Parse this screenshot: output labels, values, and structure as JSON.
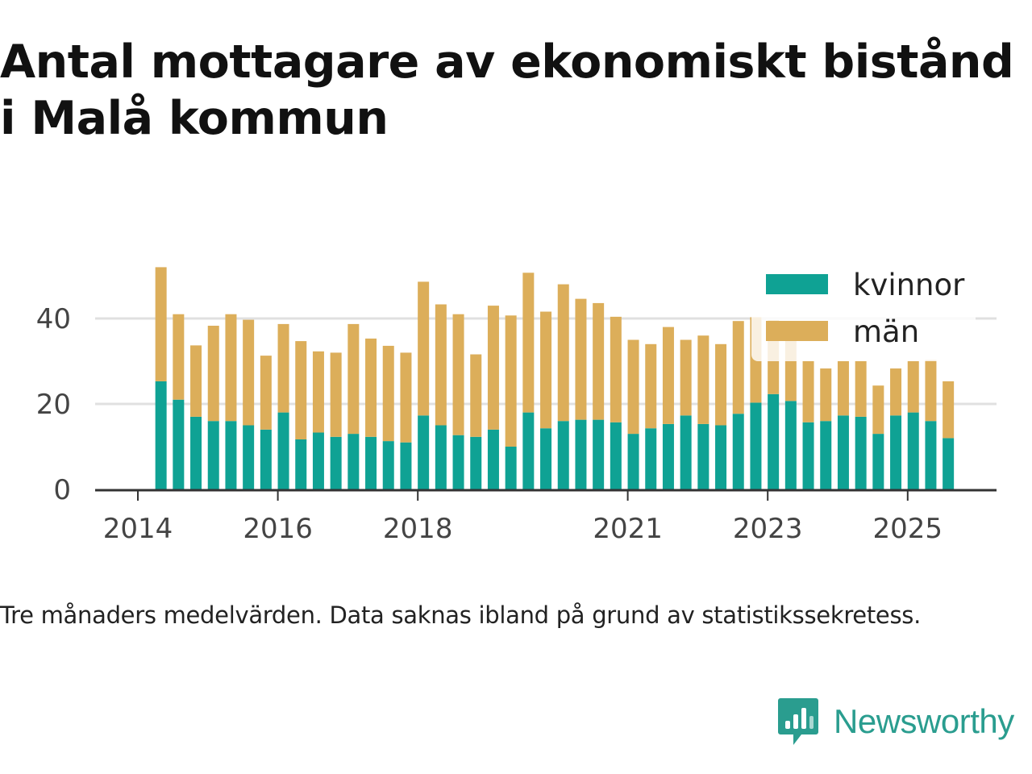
{
  "chart_data": {
    "type": "bar",
    "stacked": true,
    "title": "Antal mottagare av ekonomiskt bistånd i Malå kommun",
    "xlabel": "",
    "ylabel": "",
    "ylim": [
      0,
      55
    ],
    "yticks": [
      0,
      20,
      40
    ],
    "xtick_labels": [
      "2014",
      "2016",
      "2018",
      "2021",
      "2023",
      "2025"
    ],
    "xtick_years": [
      2014,
      2016,
      2018,
      2021,
      2023,
      2025
    ],
    "x_start": 2014.33,
    "x_step": 0.25,
    "legend_position": "top-right",
    "series": [
      {
        "name": "kvinnor",
        "color": "#0fa294",
        "values": [
          25.3,
          21,
          17,
          16,
          16,
          15,
          14,
          18,
          11.7,
          13.3,
          12.3,
          13,
          12.3,
          11.3,
          11,
          17.3,
          15,
          12.7,
          12.3,
          14,
          10,
          18,
          14.3,
          16,
          16.3,
          16.3,
          15.7,
          13,
          14.3,
          15.3,
          17.3,
          15.3,
          15,
          17.7,
          20.3,
          22.3,
          20.7,
          15.7,
          16,
          17.3,
          17,
          13,
          17.3,
          18,
          16,
          12
        ]
      },
      {
        "name": "män",
        "color": "#dcae5a",
        "values": [
          26.7,
          20,
          16.7,
          22.3,
          25,
          24.7,
          17.3,
          20.7,
          23,
          19,
          19.7,
          25.7,
          23,
          22.3,
          21,
          31.3,
          28.3,
          28.3,
          19.3,
          29,
          30.7,
          32.7,
          27.3,
          32,
          28.3,
          27.3,
          24.7,
          22,
          19.7,
          22.7,
          17.7,
          20.7,
          19,
          21.7,
          20,
          17.3,
          17.3,
          14.3,
          12.3,
          12.7,
          13,
          11.3,
          11,
          12,
          14.3,
          13.3
        ]
      }
    ]
  },
  "caption": "Tre månaders medelvärden. Data saknas ibland på grund av statistikssekretess.",
  "brand": {
    "name": "Newsworthy",
    "color": "#2a9d8f"
  }
}
